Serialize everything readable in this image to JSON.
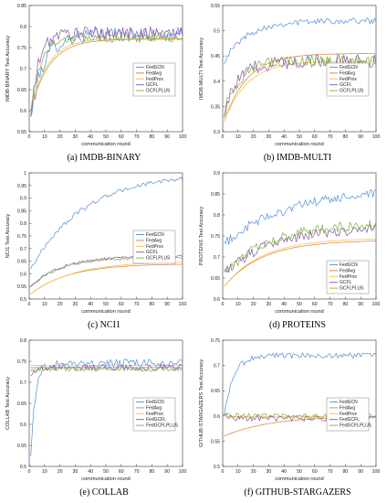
{
  "chart_data": [
    {
      "type": "line",
      "caption": "(a) IMDB-BINARY",
      "xlabel": "communication round",
      "ylabel": "IMDB-BINARY Test Accuracy",
      "xlim": [
        0,
        100
      ],
      "ylim": [
        0.55,
        0.85
      ],
      "xticks": [
        0,
        10,
        20,
        30,
        40,
        50,
        60,
        70,
        80,
        90,
        100
      ],
      "yticks": [
        0.55,
        0.6,
        0.65,
        0.7,
        0.75,
        0.8,
        0.85
      ],
      "legend_position": "center-right",
      "series": [
        {
          "name": "FedGCN",
          "color": "#4e8fd6",
          "shape": "noisy",
          "start": 0.58,
          "end": 0.78,
          "rate": 8,
          "noise": 0.018
        },
        {
          "name": "FedAvg",
          "color": "#e07a3a",
          "shape": "smooth",
          "start": 0.6,
          "end": 0.77,
          "rate": 12
        },
        {
          "name": "FedProx",
          "color": "#f0c232",
          "shape": "smooth",
          "start": 0.6,
          "end": 0.772,
          "rate": 11
        },
        {
          "name": "GCFL",
          "color": "#8c4fb0",
          "shape": "noisy",
          "start": 0.58,
          "end": 0.785,
          "rate": 5,
          "noise": 0.015
        },
        {
          "name": "GCFLPLUS",
          "color": "#7ab03a",
          "shape": "noisy",
          "start": 0.59,
          "end": 0.775,
          "rate": 6,
          "noise": 0.012
        }
      ]
    },
    {
      "type": "line",
      "caption": "(b) IMDB-MULTI",
      "xlabel": "communication round",
      "ylabel": "IMDB-MULTI Test Accuracy",
      "xlim": [
        0,
        100
      ],
      "ylim": [
        0.3,
        0.55
      ],
      "xticks": [
        0,
        10,
        20,
        30,
        40,
        50,
        60,
        70,
        80,
        90,
        100
      ],
      "yticks": [
        0.3,
        0.35,
        0.4,
        0.45,
        0.5,
        0.55
      ],
      "legend_position": "center-right",
      "series": [
        {
          "name": "FedGCN",
          "color": "#4e8fd6",
          "shape": "noisy",
          "start": 0.44,
          "end": 0.52,
          "rate": 15,
          "noise": 0.006
        },
        {
          "name": "FedAvg",
          "color": "#e07a3a",
          "shape": "smooth",
          "start": 0.32,
          "end": 0.455,
          "rate": 15
        },
        {
          "name": "FedProx",
          "color": "#f0c232",
          "shape": "smooth",
          "start": 0.32,
          "end": 0.44,
          "rate": 15
        },
        {
          "name": "GCFL",
          "color": "#8c4fb0",
          "shape": "noisy",
          "start": 0.34,
          "end": 0.44,
          "rate": 10,
          "noise": 0.014
        },
        {
          "name": "GCFLPLUS",
          "color": "#7ab03a",
          "shape": "noisy",
          "start": 0.34,
          "end": 0.44,
          "rate": 10,
          "noise": 0.012
        }
      ]
    },
    {
      "type": "line",
      "caption": "(c) NCI1",
      "xlabel": "communication round",
      "ylabel": "NCI1 Test Accuracy",
      "xlim": [
        0,
        100
      ],
      "ylim": [
        0.5,
        1
      ],
      "xticks": [
        0,
        10,
        20,
        30,
        40,
        50,
        60,
        70,
        80,
        90,
        100
      ],
      "yticks": [
        0.5,
        0.55,
        0.6,
        0.65,
        0.7,
        0.75,
        0.8,
        0.85,
        0.9,
        0.95,
        1
      ],
      "legend_position": "center-right",
      "series": [
        {
          "name": "FedGCN",
          "color": "#4e8fd6",
          "shape": "smooth",
          "start": 0.62,
          "end": 1.0,
          "rate": 35,
          "noise": 0.008
        },
        {
          "name": "FedAvg",
          "color": "#e07a3a",
          "shape": "smooth",
          "start": 0.52,
          "end": 0.64,
          "rate": 25
        },
        {
          "name": "FedProx",
          "color": "#f0c232",
          "shape": "smooth",
          "start": 0.52,
          "end": 0.65,
          "rate": 28
        },
        {
          "name": "GCFL",
          "color": "#8c4fb0",
          "shape": "noisy",
          "start": 0.55,
          "end": 0.67,
          "rate": 20,
          "noise": 0.005
        },
        {
          "name": "GCFLPLUS",
          "color": "#7ab03a",
          "shape": "noisy",
          "start": 0.55,
          "end": 0.665,
          "rate": 20,
          "noise": 0.005
        }
      ]
    },
    {
      "type": "line",
      "caption": "(d) PROTEINS",
      "xlabel": "communication round",
      "ylabel": "PROTEINS Test Accuracy",
      "xlim": [
        0,
        100
      ],
      "ylim": [
        0.6,
        0.9
      ],
      "xticks": [
        0,
        10,
        20,
        30,
        40,
        50,
        60,
        70,
        80,
        90,
        100
      ],
      "yticks": [
        0.6,
        0.65,
        0.7,
        0.75,
        0.8,
        0.85,
        0.9
      ],
      "legend_position": "bottom-right",
      "series": [
        {
          "name": "FedGCN",
          "color": "#4e8fd6",
          "shape": "noisy",
          "start": 0.73,
          "end": 0.86,
          "rate": 40,
          "noise": 0.012
        },
        {
          "name": "FedAvg",
          "color": "#e07a3a",
          "shape": "smooth",
          "start": 0.63,
          "end": 0.74,
          "rate": 25
        },
        {
          "name": "FedProx",
          "color": "#f0c232",
          "shape": "smooth",
          "start": 0.63,
          "end": 0.745,
          "rate": 25
        },
        {
          "name": "GCFL",
          "color": "#8c4fb0",
          "shape": "noisy",
          "start": 0.66,
          "end": 0.77,
          "rate": 30,
          "noise": 0.012
        },
        {
          "name": "GCFLPLUS",
          "color": "#7ab03a",
          "shape": "noisy",
          "start": 0.66,
          "end": 0.78,
          "rate": 30,
          "noise": 0.012
        }
      ]
    },
    {
      "type": "line",
      "caption": "(e) COLLAB",
      "xlabel": "communication round",
      "ylabel": "COLLAB Test Accuracy",
      "xlim": [
        0,
        100
      ],
      "ylim": [
        0.5,
        0.8
      ],
      "xticks": [
        0,
        10,
        20,
        30,
        40,
        50,
        60,
        70,
        80,
        90,
        100
      ],
      "yticks": [
        0.5,
        0.55,
        0.6,
        0.65,
        0.7,
        0.75,
        0.8
      ],
      "legend_position": "center-right",
      "series": [
        {
          "name": "FedGCN",
          "color": "#4e8fd6",
          "shape": "noisy",
          "start": 0.53,
          "end": 0.745,
          "rate": 3,
          "noise": 0.01
        },
        {
          "name": "FedAvg",
          "color": "#e07a3a",
          "shape": "smooth",
          "start": 0.735,
          "end": 0.735,
          "rate": 5
        },
        {
          "name": "FedProx",
          "color": "#f0c232",
          "shape": "smooth",
          "start": 0.74,
          "end": 0.74,
          "rate": 5
        },
        {
          "name": "FedGCFL",
          "color": "#8c4fb0",
          "shape": "noisy",
          "start": 0.72,
          "end": 0.735,
          "rate": 5,
          "noise": 0.008
        },
        {
          "name": "FedGCFLPLUS",
          "color": "#7ab03a",
          "shape": "noisy",
          "start": 0.73,
          "end": 0.732,
          "rate": 5,
          "noise": 0.006
        }
      ]
    },
    {
      "type": "line",
      "caption": "(f) GITHUB-STARGAZERS",
      "xlabel": "communication round",
      "ylabel": "GITHUB-STARGAZERS Test Accuracy",
      "xlim": [
        0,
        100
      ],
      "ylim": [
        0.5,
        0.75
      ],
      "xticks": [
        0,
        10,
        20,
        30,
        40,
        50,
        60,
        70,
        80,
        90,
        100
      ],
      "yticks": [
        0.5,
        0.55,
        0.6,
        0.65,
        0.7,
        0.75
      ],
      "legend_position": "center-right",
      "series": [
        {
          "name": "FedGCN",
          "color": "#4e8fd6",
          "shape": "noisy",
          "start": 0.6,
          "end": 0.72,
          "rate": 6,
          "noise": 0.006
        },
        {
          "name": "FedAvg",
          "color": "#e07a3a",
          "shape": "smooth",
          "start": 0.56,
          "end": 0.6,
          "rate": 30
        },
        {
          "name": "FedProx",
          "color": "#f0c232",
          "shape": "smooth",
          "start": 0.6,
          "end": 0.598,
          "rate": 5
        },
        {
          "name": "FedGCFL",
          "color": "#8c4fb0",
          "shape": "noisy",
          "start": 0.6,
          "end": 0.595,
          "rate": 5,
          "noise": 0.006
        },
        {
          "name": "FedGCFLPLUS",
          "color": "#7ab03a",
          "shape": "noisy",
          "start": 0.605,
          "end": 0.6,
          "rate": 5,
          "noise": 0.005
        }
      ]
    }
  ]
}
